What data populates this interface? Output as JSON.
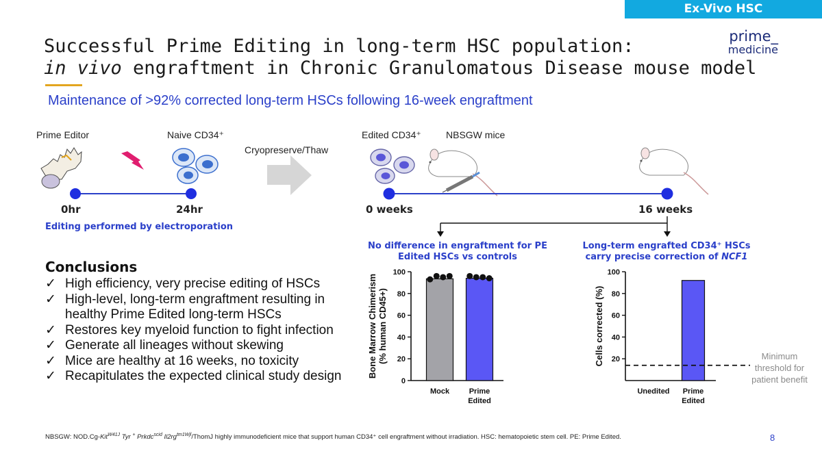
{
  "section_tag": "Ex-Vivo HSC",
  "logo": {
    "line1": "prime_",
    "line2": "medicine"
  },
  "title": {
    "line1": "Successful Prime Editing in long-term HSC population:",
    "line2_italic": "in vivo",
    "line2_rest": " engraftment in Chronic Granulomatous Disease mouse model"
  },
  "subtitle": "Maintenance of >92% corrected long-term HSCs following 16-week engraftment",
  "workflow": {
    "editing": {
      "label_left": "Prime Editor",
      "label_right": "Naive CD34⁺",
      "time_start": "0hr",
      "time_end": "24hr",
      "caption": "Editing performed by electroporation"
    },
    "transition_label": "Cryopreserve/Thaw",
    "engraftment": {
      "label_cells": "Edited CD34⁺",
      "label_mice": "NBSGW mice",
      "time_start": "0 weeks",
      "time_end": "16 weeks"
    }
  },
  "colors": {
    "accent_blue": "#2a3fc9",
    "bar_blue": "#5a57f5",
    "bar_gray": "#a3a3a8",
    "tag_bg": "#12a9e0",
    "dot_blue": "#1f2ee0"
  },
  "conclusions": {
    "heading": "Conclusions",
    "items": [
      "High efficiency, very precise editing of HSCs",
      "High-level, long-term engraftment resulting in",
      "healthy Prime Edited long-term HSCs",
      "Restores key myeloid function to fight infection",
      "Generate all lineages without skewing",
      "Mice are healthy at 16 weeks, no toxicity",
      "Recapitulates the expected clinical study design"
    ]
  },
  "chart_data": [
    {
      "type": "bar",
      "title": "No  difference in engraftment for PE Edited HSCs vs controls",
      "title_lines": [
        "No  difference in engraftment for PE",
        "Edited HSCs vs controls"
      ],
      "categories": [
        "Mock",
        "Prime Edited"
      ],
      "category_lines": [
        [
          "Mock"
        ],
        [
          "Prime",
          "Edited"
        ]
      ],
      "values": [
        93.5,
        94
      ],
      "points": [
        [
          93,
          96,
          95,
          96
        ],
        [
          96,
          95,
          95,
          94
        ]
      ],
      "ylabel": "Bone Marrow Chimerism (% human CD45+)",
      "ylabel_lines": [
        "Bone Marrow Chimerism",
        "(% human CD45+)"
      ],
      "yticks": [
        "0",
        "20",
        "40",
        "60",
        "80",
        "100"
      ],
      "ylim": [
        0,
        100
      ]
    },
    {
      "type": "bar",
      "title": "Long-term engrafted CD34⁺ HSCs carry precise correction of NCF1",
      "title_line1": "Long-term engrafted CD34⁺ HSCs",
      "title_line2_plain": "carry precise correction of ",
      "title_line2_italic": "NCF1",
      "categories": [
        "Unedited",
        "Prime Edited"
      ],
      "category_lines": [
        [
          "Unedited"
        ],
        [
          "Prime",
          "Edited"
        ]
      ],
      "values": [
        0,
        92
      ],
      "ylabel": "Cells corrected (%)",
      "yticks": [
        "20",
        "40",
        "60",
        "80",
        "100"
      ],
      "ylim": [
        0,
        100
      ],
      "threshold": {
        "value": 14,
        "label_lines": [
          "Minimum",
          "threshold for",
          "patient benefit"
        ]
      }
    }
  ],
  "footnote": {
    "prefix": "NBSGW: NOD.Cg-",
    "kit": "Kit",
    "kit_sup": "W41J",
    "tyr": " Tyr ",
    "tyr_sup": "+",
    "prkdc": " Prkdc",
    "prkdc_sup": "scid",
    "il2rg": " Il2rg",
    "il2rg_sup": "tm1Wjl",
    "rest": "/ThomJ highly immunodeficient mice that support human CD34⁺ cell engraftment without irradiation. HSC: hematopoietic stem cell. PE: Prime Edited."
  },
  "page_number": "8"
}
